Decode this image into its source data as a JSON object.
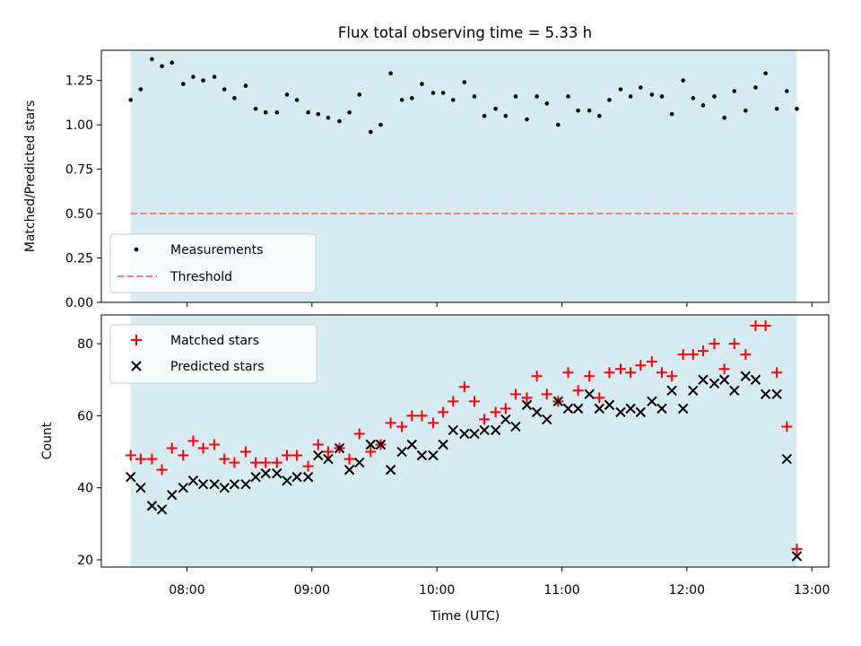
{
  "chart_data": [
    {
      "type": "scatter",
      "title": "Flux total observing time = 5.33 h",
      "xlabel": "",
      "ylabel": "Matched/Predicted stars",
      "ylim": [
        0.0,
        1.42
      ],
      "yticks": [
        0.0,
        0.25,
        0.5,
        0.75,
        1.0,
        1.25
      ],
      "ytick_labels": [
        "0.00",
        "0.25",
        "0.50",
        "0.75",
        "1.00",
        "1.25"
      ],
      "x_unit": "hours UTC",
      "xlim": [
        7.315,
        13.135
      ],
      "observing_window": [
        7.55,
        12.88
      ],
      "threshold": 0.5,
      "legend": {
        "placement": "lower-left",
        "entries": [
          "Measurements",
          "Threshold"
        ]
      },
      "colors": {
        "points": "#000000",
        "threshold": "#f08080",
        "span": "#add8e6"
      },
      "series": [
        {
          "name": "Measurements",
          "x": [
            7.55,
            7.63,
            7.72,
            7.8,
            7.88,
            7.97,
            8.05,
            8.13,
            8.22,
            8.3,
            8.38,
            8.47,
            8.55,
            8.63,
            8.72,
            8.8,
            8.88,
            8.97,
            9.05,
            9.13,
            9.22,
            9.3,
            9.38,
            9.47,
            9.55,
            9.63,
            9.72,
            9.8,
            9.88,
            9.97,
            10.05,
            10.13,
            10.22,
            10.3,
            10.38,
            10.47,
            10.55,
            10.63,
            10.72,
            10.8,
            10.88,
            10.97,
            11.05,
            11.13,
            11.22,
            11.3,
            11.38,
            11.47,
            11.55,
            11.63,
            11.72,
            11.8,
            11.88,
            11.97,
            12.05,
            12.13,
            12.22,
            12.3,
            12.38,
            12.47,
            12.55,
            12.63,
            12.72,
            12.8,
            12.88
          ],
          "y": [
            1.14,
            1.2,
            1.37,
            1.33,
            1.35,
            1.23,
            1.27,
            1.25,
            1.27,
            1.2,
            1.15,
            1.22,
            1.09,
            1.07,
            1.07,
            1.17,
            1.14,
            1.07,
            1.06,
            1.04,
            1.02,
            1.07,
            1.17,
            0.96,
            1.0,
            1.29,
            1.14,
            1.15,
            1.23,
            1.18,
            1.18,
            1.14,
            1.24,
            1.16,
            1.05,
            1.09,
            1.05,
            1.16,
            1.03,
            1.16,
            1.12,
            1.0,
            1.16,
            1.08,
            1.08,
            1.05,
            1.14,
            1.2,
            1.16,
            1.21,
            1.17,
            1.16,
            1.06,
            1.25,
            1.15,
            1.11,
            1.16,
            1.04,
            1.19,
            1.08,
            1.21,
            1.29,
            1.09,
            1.19,
            1.09
          ]
        }
      ]
    },
    {
      "type": "scatter",
      "title": "",
      "xlabel": "Time (UTC)",
      "ylabel": "Count",
      "ylim": [
        18,
        88
      ],
      "yticks": [
        20,
        40,
        60,
        80
      ],
      "ytick_labels": [
        "20",
        "40",
        "60",
        "80"
      ],
      "x_unit": "hours UTC",
      "xlim": [
        7.315,
        13.135
      ],
      "xticks": [
        8,
        9,
        10,
        11,
        12,
        13
      ],
      "xtick_labels": [
        "08:00",
        "09:00",
        "10:00",
        "11:00",
        "12:00",
        "13:00"
      ],
      "observing_window": [
        7.55,
        12.88
      ],
      "legend": {
        "placement": "upper-left",
        "entries": [
          "Matched stars",
          "Predicted stars"
        ]
      },
      "colors": {
        "matched": "#ff0000",
        "predicted": "#000000",
        "span": "#add8e6"
      },
      "series": [
        {
          "name": "Matched stars",
          "marker": "plus",
          "x": [
            7.55,
            7.63,
            7.72,
            7.8,
            7.88,
            7.97,
            8.05,
            8.13,
            8.22,
            8.3,
            8.38,
            8.47,
            8.55,
            8.63,
            8.72,
            8.8,
            8.88,
            8.97,
            9.05,
            9.13,
            9.22,
            9.3,
            9.38,
            9.47,
            9.55,
            9.63,
            9.72,
            9.8,
            9.88,
            9.97,
            10.05,
            10.13,
            10.22,
            10.3,
            10.38,
            10.47,
            10.55,
            10.63,
            10.72,
            10.8,
            10.88,
            10.97,
            11.05,
            11.13,
            11.22,
            11.3,
            11.38,
            11.47,
            11.55,
            11.63,
            11.72,
            11.8,
            11.88,
            11.97,
            12.05,
            12.13,
            12.22,
            12.3,
            12.38,
            12.47,
            12.55,
            12.63,
            12.72,
            12.8,
            12.88
          ],
          "y": [
            49,
            48,
            48,
            45,
            51,
            49,
            53,
            51,
            52,
            48,
            47,
            50,
            47,
            47,
            47,
            49,
            49,
            46,
            52,
            50,
            51,
            48,
            55,
            50,
            52,
            58,
            57,
            60,
            60,
            58,
            61,
            64,
            68,
            64,
            59,
            61,
            62,
            66,
            65,
            71,
            66,
            64,
            72,
            67,
            71,
            65,
            72,
            73,
            72,
            74,
            75,
            72,
            71,
            77,
            77,
            78,
            80,
            73,
            80,
            77,
            85,
            85,
            72,
            57,
            23
          ]
        },
        {
          "name": "Predicted stars",
          "marker": "x",
          "x": [
            7.55,
            7.63,
            7.72,
            7.8,
            7.88,
            7.97,
            8.05,
            8.13,
            8.22,
            8.3,
            8.38,
            8.47,
            8.55,
            8.63,
            8.72,
            8.8,
            8.88,
            8.97,
            9.05,
            9.13,
            9.22,
            9.3,
            9.38,
            9.47,
            9.55,
            9.63,
            9.72,
            9.8,
            9.88,
            9.97,
            10.05,
            10.13,
            10.22,
            10.3,
            10.38,
            10.47,
            10.55,
            10.63,
            10.72,
            10.8,
            10.88,
            10.97,
            11.05,
            11.13,
            11.22,
            11.3,
            11.38,
            11.47,
            11.55,
            11.63,
            11.72,
            11.8,
            11.88,
            11.97,
            12.05,
            12.13,
            12.22,
            12.3,
            12.38,
            12.47,
            12.55,
            12.63,
            12.72,
            12.8,
            12.88
          ],
          "y": [
            43,
            40,
            35,
            34,
            38,
            40,
            42,
            41,
            41,
            40,
            41,
            41,
            43,
            44,
            44,
            42,
            43,
            43,
            49,
            48,
            51,
            45,
            47,
            52,
            52,
            45,
            50,
            52,
            49,
            49,
            52,
            56,
            55,
            55,
            56,
            56,
            59,
            57,
            63,
            61,
            59,
            64,
            62,
            62,
            66,
            62,
            63,
            61,
            62,
            61,
            64,
            62,
            67,
            62,
            67,
            70,
            69,
            70,
            67,
            71,
            70,
            66,
            66,
            48,
            21
          ]
        }
      ]
    }
  ]
}
